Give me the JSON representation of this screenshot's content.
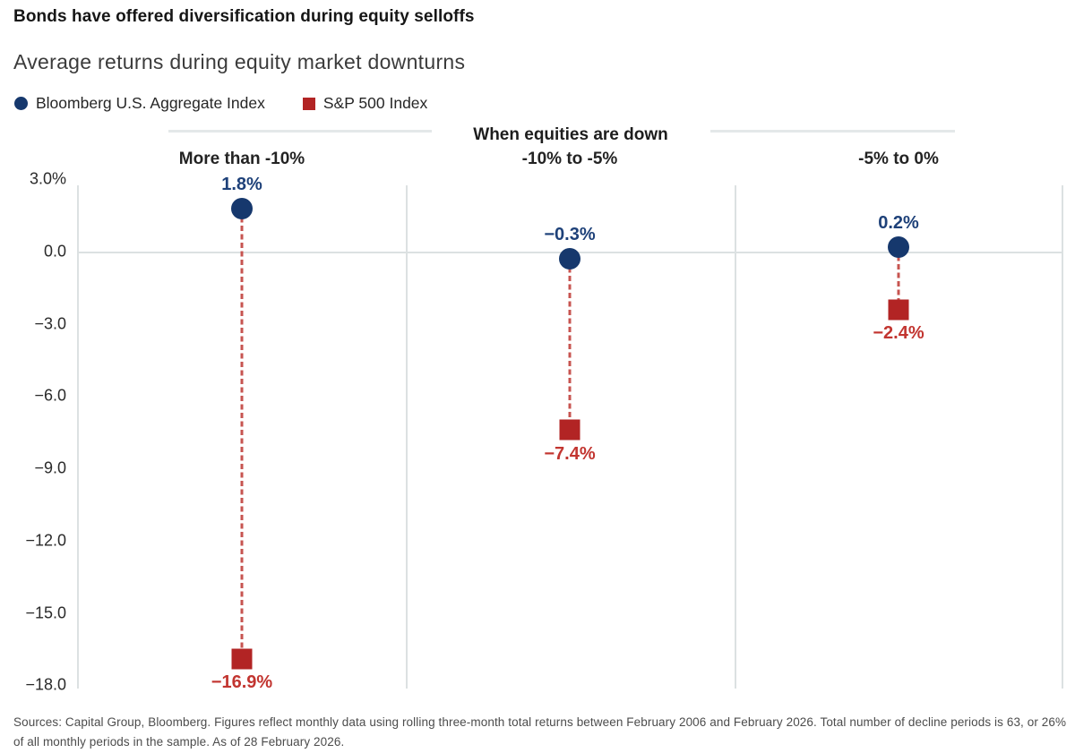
{
  "header": {
    "title": "Bonds have offered diversification during equity selloffs",
    "subtitle": "Average returns during equity market downturns"
  },
  "legend": {
    "items": [
      {
        "label": "Bloomberg U.S. Aggregate Index",
        "marker": "circle",
        "color": "#16386d"
      },
      {
        "label": "S&P 500 Index",
        "marker": "square",
        "color": "#b22424"
      }
    ]
  },
  "chart_data": {
    "type": "scatter",
    "title": "Average returns during equity market downturns",
    "group_header": "When equities are down",
    "categories": [
      "More than -10%",
      "-10% to -5%",
      "-5% to 0%"
    ],
    "series": [
      {
        "name": "Bloomberg U.S. Aggregate Index",
        "marker": "circle",
        "color": "#16386d",
        "label_color": "#1e4179",
        "values": [
          1.8,
          -0.3,
          0.2
        ],
        "labels": [
          "1.8%",
          "−0.3%",
          "0.2%"
        ]
      },
      {
        "name": "S&P 500 Index",
        "marker": "square",
        "color": "#b22424",
        "label_color": "#c23530",
        "values": [
          -16.9,
          -7.4,
          -2.4
        ],
        "labels": [
          "−16.9%",
          "−7.4%",
          "−2.4%"
        ]
      }
    ],
    "connector_color": "#c75450",
    "y_ticks": [
      {
        "label": "3.0%",
        "value": 3.0
      },
      {
        "label": "0.0",
        "value": 0.0
      },
      {
        "label": "−3.0",
        "value": -3.0
      },
      {
        "label": "−6.0",
        "value": -6.0
      },
      {
        "label": "−9.0",
        "value": -9.0
      },
      {
        "label": "−12.0",
        "value": -12.0
      },
      {
        "label": "−15.0",
        "value": -15.0
      },
      {
        "label": "−18.0",
        "value": -18.0
      }
    ],
    "ylim": [
      -18,
      3
    ],
    "grid": "zero line only",
    "legend_position": "top-left"
  },
  "footer": {
    "text": "Sources: Capital Group, Bloomberg. Figures reflect monthly data using rolling three-month total returns between February 2006 and February 2026. Total number of decline periods is 63, or 26% of all monthly periods in the sample. As of 28 February 2026."
  }
}
